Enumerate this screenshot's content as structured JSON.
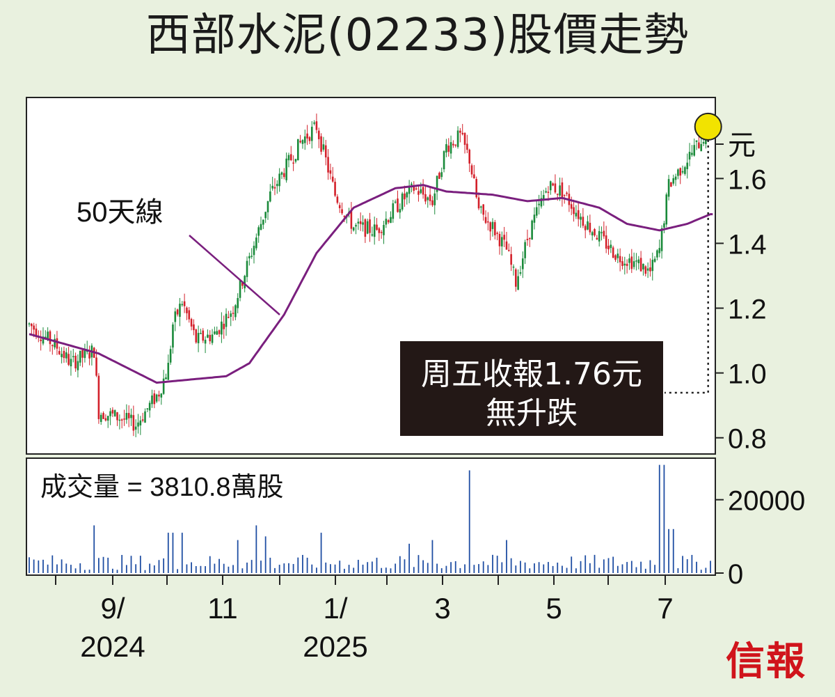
{
  "title": "西部水泥(02233)股價走勢",
  "brand": "信報",
  "chart_data": {
    "type": "candlestick",
    "price_unit": "元",
    "ylim": [
      0.75,
      1.85
    ],
    "y_ticks": [
      "0.8",
      "1.0",
      "1.2",
      "1.4",
      "1.6"
    ],
    "x_ticks": [
      {
        "line1": "9/",
        "line2": "2024"
      },
      {
        "line1": "11",
        "line2": ""
      },
      {
        "line1": "1/",
        "line2": "2025"
      },
      {
        "line1": "3",
        "line2": ""
      },
      {
        "line1": "5",
        "line2": ""
      },
      {
        "line1": "7",
        "line2": ""
      }
    ],
    "ma_label": "50天線",
    "annotation": {
      "line1": "周五收報1.76元",
      "line2": "無升跌"
    },
    "last_close": 1.76,
    "volume": {
      "label": "成交量 = 3810.8萬股",
      "ticks": [
        "20000",
        "0"
      ],
      "ylim": [
        0,
        30000
      ]
    },
    "price_key": [
      {
        "d": 0,
        "p": 1.15
      },
      {
        "d": 12,
        "p": 1.08
      },
      {
        "d": 18,
        "p": 1.03
      },
      {
        "d": 28,
        "p": 1.07
      },
      {
        "d": 30,
        "p": 0.88
      },
      {
        "d": 40,
        "p": 0.86
      },
      {
        "d": 46,
        "p": 0.84
      },
      {
        "d": 56,
        "p": 0.94
      },
      {
        "d": 60,
        "p": 1.02
      },
      {
        "d": 62,
        "p": 1.15
      },
      {
        "d": 66,
        "p": 1.22
      },
      {
        "d": 72,
        "p": 1.1
      },
      {
        "d": 80,
        "p": 1.12
      },
      {
        "d": 88,
        "p": 1.2
      },
      {
        "d": 94,
        "p": 1.33
      },
      {
        "d": 104,
        "p": 1.55
      },
      {
        "d": 112,
        "p": 1.65
      },
      {
        "d": 118,
        "p": 1.72
      },
      {
        "d": 124,
        "p": 1.76
      },
      {
        "d": 132,
        "p": 1.55
      },
      {
        "d": 140,
        "p": 1.45
      },
      {
        "d": 150,
        "p": 1.44
      },
      {
        "d": 158,
        "p": 1.51
      },
      {
        "d": 166,
        "p": 1.57
      },
      {
        "d": 174,
        "p": 1.53
      },
      {
        "d": 180,
        "p": 1.7
      },
      {
        "d": 186,
        "p": 1.73
      },
      {
        "d": 190,
        "p": 1.66
      },
      {
        "d": 194,
        "p": 1.5
      },
      {
        "d": 200,
        "p": 1.45
      },
      {
        "d": 206,
        "p": 1.38
      },
      {
        "d": 210,
        "p": 1.28
      },
      {
        "d": 216,
        "p": 1.44
      },
      {
        "d": 224,
        "p": 1.58
      },
      {
        "d": 230,
        "p": 1.56
      },
      {
        "d": 238,
        "p": 1.48
      },
      {
        "d": 246,
        "p": 1.42
      },
      {
        "d": 254,
        "p": 1.36
      },
      {
        "d": 262,
        "p": 1.34
      },
      {
        "d": 268,
        "p": 1.31
      },
      {
        "d": 272,
        "p": 1.38
      },
      {
        "d": 276,
        "p": 1.58
      },
      {
        "d": 282,
        "p": 1.64
      },
      {
        "d": 288,
        "p": 1.7
      },
      {
        "d": 294,
        "p": 1.76
      }
    ],
    "ma50_key": [
      {
        "d": 0,
        "p": 1.12
      },
      {
        "d": 20,
        "p": 1.08
      },
      {
        "d": 30,
        "p": 1.06
      },
      {
        "d": 55,
        "p": 0.97
      },
      {
        "d": 70,
        "p": 0.98
      },
      {
        "d": 85,
        "p": 0.99
      },
      {
        "d": 95,
        "p": 1.03
      },
      {
        "d": 110,
        "p": 1.18
      },
      {
        "d": 124,
        "p": 1.37
      },
      {
        "d": 140,
        "p": 1.51
      },
      {
        "d": 158,
        "p": 1.57
      },
      {
        "d": 170,
        "p": 1.58
      },
      {
        "d": 180,
        "p": 1.56
      },
      {
        "d": 200,
        "p": 1.55
      },
      {
        "d": 215,
        "p": 1.53
      },
      {
        "d": 230,
        "p": 1.54
      },
      {
        "d": 246,
        "p": 1.51
      },
      {
        "d": 258,
        "p": 1.46
      },
      {
        "d": 272,
        "p": 1.44
      },
      {
        "d": 284,
        "p": 1.46
      },
      {
        "d": 294,
        "p": 1.49
      }
    ],
    "volume_key": [
      {
        "d": 28,
        "v": 13000
      },
      {
        "d": 58,
        "v": 4000
      },
      {
        "d": 61,
        "v": 11000
      },
      {
        "d": 66,
        "v": 11000
      },
      {
        "d": 90,
        "v": 9000
      },
      {
        "d": 98,
        "v": 13000
      },
      {
        "d": 102,
        "v": 10000
      },
      {
        "d": 126,
        "v": 11000
      },
      {
        "d": 164,
        "v": 8000
      },
      {
        "d": 174,
        "v": 9000
      },
      {
        "d": 190,
        "v": 28000
      },
      {
        "d": 206,
        "v": 9000
      },
      {
        "d": 273,
        "v": 29500
      },
      {
        "d": 277,
        "v": 12000
      }
    ],
    "colors": {
      "up": "#1a8a3a",
      "down": "#d3202a",
      "ma50": "#7a1f7e",
      "volume": "#1f4ea3",
      "highlight": "#f2e300"
    }
  }
}
